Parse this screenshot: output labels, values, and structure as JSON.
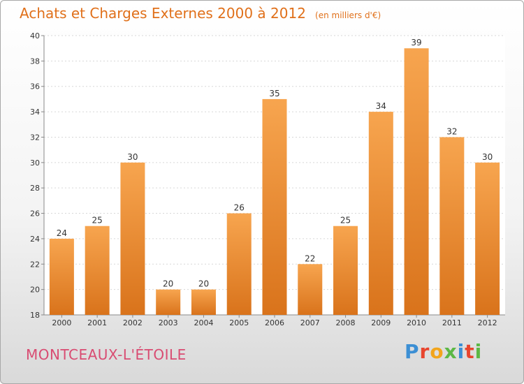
{
  "header": {
    "title": "Achats et Charges Externes 2000 à 2012",
    "subtitle": "(en milliers d'€)"
  },
  "footer": {
    "commune": "MONTCEAUX-L'ÉTOILE",
    "brand": "Proxiti"
  },
  "colors": {
    "bar_top": "#f7a54f",
    "bar_bottom": "#d9731b",
    "title": "#e0701a",
    "commune": "#d94c72"
  },
  "chart_data": {
    "type": "bar",
    "categories": [
      "2000",
      "2001",
      "2002",
      "2003",
      "2004",
      "2005",
      "2006",
      "2007",
      "2008",
      "2009",
      "2010",
      "2011",
      "2012"
    ],
    "values": [
      24,
      25,
      30,
      20,
      20,
      26,
      35,
      22,
      25,
      34,
      39,
      32,
      30
    ],
    "ylim": [
      18,
      40
    ],
    "yticks": [
      18,
      20,
      22,
      24,
      26,
      28,
      30,
      32,
      34,
      36,
      38,
      40
    ],
    "grid": true,
    "data_labels": true
  }
}
